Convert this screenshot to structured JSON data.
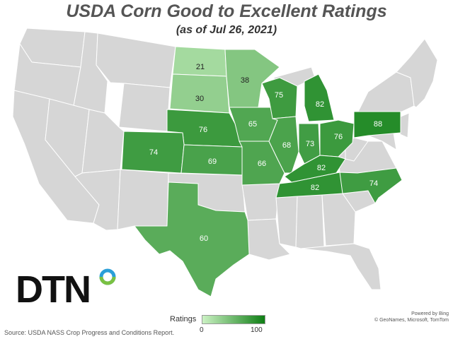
{
  "title": "USDA Corn Good to Excellent Ratings",
  "subtitle": "(as of Jul 26, 2021)",
  "legend": {
    "title": "Ratings",
    "min": "0",
    "max": "100",
    "color_low": "#ccf2c4",
    "color_high": "#0e7e14"
  },
  "source": "Source: USDA NASS Crop Progress and Conditions Report.",
  "attribution": [
    "Powered by Bing",
    "© GeoNames, Microsoft, TomTom"
  ],
  "logo": {
    "text": "DTN",
    "icon": "dtn-circle-logo-icon"
  },
  "colors": {
    "no_data": "#d6d6d6",
    "state_border": "#ffffff"
  },
  "states": [
    {
      "id": "ND",
      "value": "21"
    },
    {
      "id": "SD",
      "value": "30"
    },
    {
      "id": "MN",
      "value": "38"
    },
    {
      "id": "NE",
      "value": "76"
    },
    {
      "id": "CO",
      "value": "74"
    },
    {
      "id": "KS",
      "value": "69"
    },
    {
      "id": "TX",
      "value": "60"
    },
    {
      "id": "IA",
      "value": "65"
    },
    {
      "id": "MO",
      "value": "66"
    },
    {
      "id": "WI",
      "value": "75"
    },
    {
      "id": "IL",
      "value": "68"
    },
    {
      "id": "MI",
      "value": "82"
    },
    {
      "id": "IN",
      "value": "73"
    },
    {
      "id": "OH",
      "value": "76"
    },
    {
      "id": "KY",
      "value": "82"
    },
    {
      "id": "TN",
      "value": "82"
    },
    {
      "id": "NC",
      "value": "74"
    },
    {
      "id": "PA",
      "value": "88"
    }
  ]
}
